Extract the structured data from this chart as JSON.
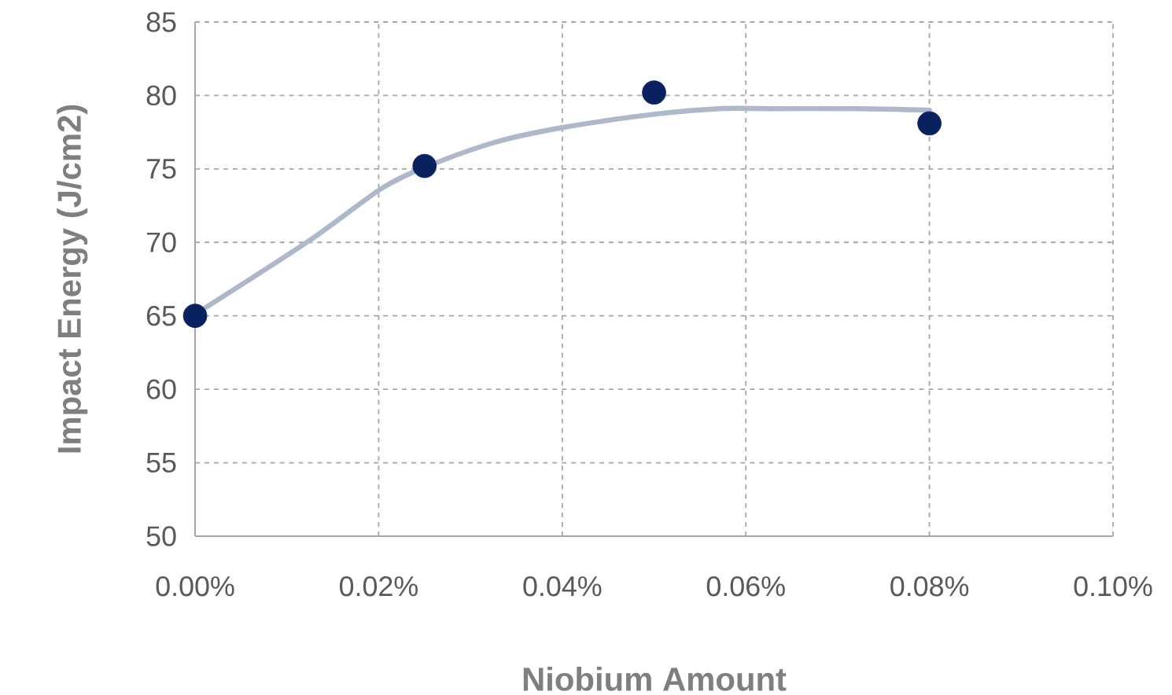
{
  "chart_data": {
    "type": "scatter",
    "xlabel": "Niobium Amount",
    "ylabel": "Impact Energy (J/cm2)",
    "xlim": [
      0,
      0.1
    ],
    "ylim": [
      50,
      85
    ],
    "xticks": [
      {
        "value": 0,
        "label": "0.00%"
      },
      {
        "value": 0.02,
        "label": "0.02%"
      },
      {
        "value": 0.04,
        "label": "0.04%"
      },
      {
        "value": 0.06,
        "label": "0.06%"
      },
      {
        "value": 0.08,
        "label": "0.08%"
      },
      {
        "value": 0.1,
        "label": "0.10%"
      }
    ],
    "yticks": [
      50,
      55,
      60,
      65,
      70,
      75,
      80,
      85
    ],
    "grid": true,
    "legend": false,
    "series": [
      {
        "type": "line",
        "color": "#adb9ca",
        "line_style": "solid",
        "marker": "none",
        "x": [
          0,
          0.0124,
          0.0204,
          0.0254,
          0.0326,
          0.0399,
          0.0498,
          0.0571,
          0.0632,
          0.0723,
          0.08
        ],
        "values": [
          65.1,
          70.1,
          73.7,
          75.2,
          76.8,
          77.8,
          78.7,
          79.1,
          79.1,
          79.1,
          79.0
        ]
      },
      {
        "color": "#0a2160",
        "marker": "circle",
        "x": [
          0,
          0.025,
          0.05,
          0.08
        ],
        "values": [
          65,
          75.2,
          80.2,
          78.1
        ]
      }
    ]
  }
}
